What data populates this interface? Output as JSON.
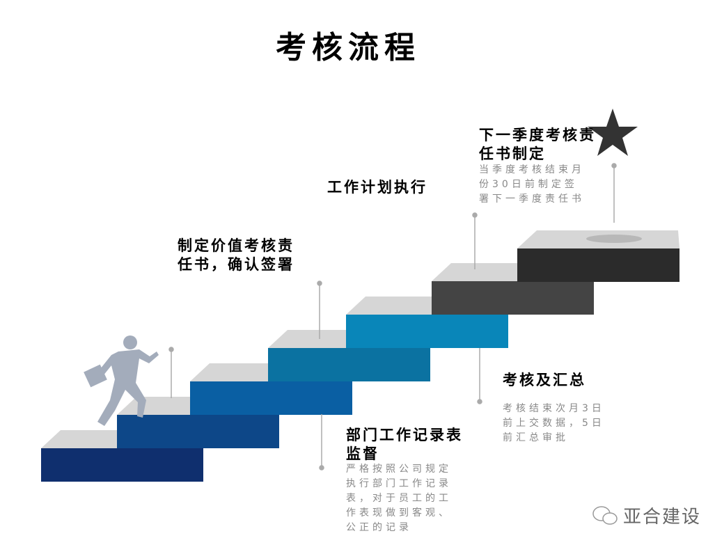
{
  "title": "考核流程",
  "steps": [
    {
      "title": "制定价值考核责任书，确认签署"
    },
    {
      "title": "部门工作记录表监督",
      "desc": "严格按照公司规定执行部门工作记录表，对于员工的工作表现做到客观、公正的记录"
    },
    {
      "title": "工作计划执行"
    },
    {
      "title": "考核及汇总",
      "desc": "考核结束次月3日前上交数据，5日前汇总审批"
    },
    {
      "title": "下一季度考核责任书制定",
      "desc": "当季度考核结束月份30日前制定签署下一季度责任书"
    }
  ],
  "stair_colors": [
    "#0f2f6e",
    "#0d4788",
    "#0a5fa3",
    "#0b72a1",
    "#0986b9",
    "#444444",
    "#2b2b2b"
  ],
  "watermark": "亚合建设",
  "icons": [
    "runner-figure",
    "star-icon",
    "wechat-icon"
  ]
}
